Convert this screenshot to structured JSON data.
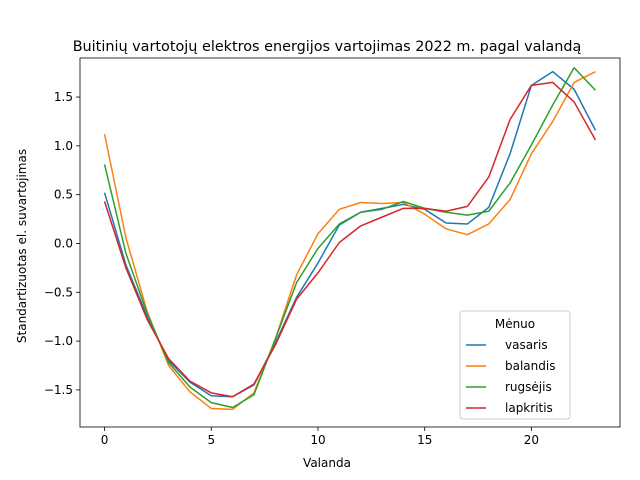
{
  "chart_data": {
    "type": "line",
    "title": "Buitinių vartotojų elektros energijos vartojimas 2022 m. pagal valandą",
    "xlabel": "Valanda",
    "ylabel": "Standartizuotas el. suvartojimas",
    "xlim": [
      -1.15,
      24.15
    ],
    "ylim": [
      -1.88,
      1.9
    ],
    "xticks": [
      0,
      5,
      10,
      15,
      20
    ],
    "yticks": [
      -1.5,
      -1.0,
      -0.5,
      0.0,
      0.5,
      1.0,
      1.5
    ],
    "xtick_labels": [
      "0",
      "5",
      "10",
      "15",
      "20"
    ],
    "ytick_labels": [
      "−1.5",
      "−1.0",
      "−0.5",
      "0.0",
      "0.5",
      "1.0",
      "1.5"
    ],
    "grid": false,
    "legend_title": "Mėnuo",
    "legend_position": "lower right",
    "x": [
      0,
      1,
      2,
      3,
      4,
      5,
      6,
      7,
      8,
      9,
      10,
      11,
      12,
      13,
      14,
      15,
      16,
      17,
      18,
      19,
      20,
      21,
      22,
      23
    ],
    "series": [
      {
        "name": "vasaris",
        "color": "#1f77b4",
        "values": [
          0.52,
          -0.22,
          -0.75,
          -1.2,
          -1.42,
          -1.56,
          -1.57,
          -1.45,
          -1.02,
          -0.55,
          -0.2,
          0.19,
          0.32,
          0.36,
          0.4,
          0.35,
          0.21,
          0.2,
          0.37,
          0.92,
          1.62,
          1.76,
          1.58,
          1.16
        ]
      },
      {
        "name": "balandis",
        "color": "#ff7f0e",
        "values": [
          1.12,
          0.06,
          -0.7,
          -1.25,
          -1.52,
          -1.69,
          -1.7,
          -1.53,
          -0.98,
          -0.32,
          0.1,
          0.35,
          0.42,
          0.41,
          0.42,
          0.3,
          0.15,
          0.09,
          0.2,
          0.45,
          0.92,
          1.25,
          1.65,
          1.76
        ]
      },
      {
        "name": "rugsėjis",
        "color": "#2ca02c",
        "values": [
          0.81,
          -0.1,
          -0.72,
          -1.22,
          -1.47,
          -1.63,
          -1.68,
          -1.55,
          -0.98,
          -0.4,
          -0.05,
          0.2,
          0.32,
          0.35,
          0.43,
          0.36,
          0.32,
          0.29,
          0.33,
          0.62,
          1.01,
          1.42,
          1.8,
          1.57
        ]
      },
      {
        "name": "lapkritis",
        "color": "#d62728",
        "values": [
          0.43,
          -0.25,
          -0.78,
          -1.18,
          -1.41,
          -1.53,
          -1.57,
          -1.44,
          -1.04,
          -0.57,
          -0.3,
          0.01,
          0.18,
          0.27,
          0.36,
          0.36,
          0.33,
          0.38,
          0.68,
          1.27,
          1.62,
          1.65,
          1.45,
          1.06
        ]
      }
    ]
  }
}
